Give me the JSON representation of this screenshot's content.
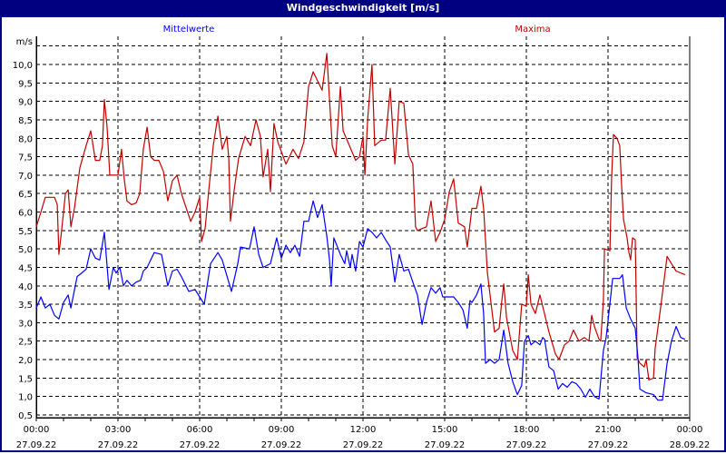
{
  "window": {
    "title": "Windgeschwindigkeit [m/s]"
  },
  "chart_data": {
    "type": "line",
    "title": "Windgeschwindigkeit [m/s]",
    "ylabel": "m/s",
    "xlabel": "",
    "ylim": [
      0.5,
      10.5
    ],
    "xlim_hours": [
      0,
      24
    ],
    "grid": true,
    "y_ticks": [
      "0,5",
      "1,0",
      "1,5",
      "2,0",
      "2,5",
      "3,0",
      "3,5",
      "4,0",
      "4,5",
      "5,0",
      "5,5",
      "6,0",
      "6,5",
      "7,0",
      "7,5",
      "8,0",
      "8,5",
      "9,0",
      "9,5",
      "10,0"
    ],
    "x_ticks": [
      {
        "time": "00:00",
        "date": "27.09.22"
      },
      {
        "time": "03:00",
        "date": "27.09.22"
      },
      {
        "time": "06:00",
        "date": "27.09.22"
      },
      {
        "time": "09:00",
        "date": "27.09.22"
      },
      {
        "time": "12:00",
        "date": "27.09.22"
      },
      {
        "time": "15:00",
        "date": "27.09.22"
      },
      {
        "time": "18:00",
        "date": "27.09.22"
      },
      {
        "time": "21:00",
        "date": "27.09.22"
      },
      {
        "time": "00:00",
        "date": "28.09.22"
      }
    ],
    "series": [
      {
        "name": "Mittelwerte",
        "color": "#0000ff",
        "legend": "top-left",
        "points": [
          [
            0,
            3.4
          ],
          [
            0.17,
            3.7
          ],
          [
            0.33,
            3.4
          ],
          [
            0.5,
            3.5
          ],
          [
            0.67,
            3.2
          ],
          [
            0.83,
            3.1
          ],
          [
            1.0,
            3.55
          ],
          [
            1.17,
            3.75
          ],
          [
            1.27,
            3.4
          ],
          [
            1.5,
            4.25
          ],
          [
            1.67,
            4.35
          ],
          [
            1.83,
            4.45
          ],
          [
            2.0,
            5.0
          ],
          [
            2.17,
            4.75
          ],
          [
            2.33,
            4.7
          ],
          [
            2.5,
            5.45
          ],
          [
            2.67,
            3.9
          ],
          [
            2.83,
            4.5
          ],
          [
            2.93,
            4.35
          ],
          [
            3.07,
            4.5
          ],
          [
            3.2,
            4.0
          ],
          [
            3.33,
            4.15
          ],
          [
            3.5,
            4.0
          ],
          [
            3.67,
            4.1
          ],
          [
            3.83,
            4.15
          ],
          [
            3.93,
            4.4
          ],
          [
            4.07,
            4.5
          ],
          [
            4.33,
            4.9
          ],
          [
            4.6,
            4.85
          ],
          [
            4.83,
            4.0
          ],
          [
            5.0,
            4.4
          ],
          [
            5.17,
            4.45
          ],
          [
            5.33,
            4.25
          ],
          [
            5.6,
            3.85
          ],
          [
            5.83,
            3.9
          ],
          [
            6.0,
            3.7
          ],
          [
            6.17,
            3.5
          ],
          [
            6.4,
            4.6
          ],
          [
            6.67,
            4.9
          ],
          [
            6.83,
            4.7
          ],
          [
            7.17,
            3.85
          ],
          [
            7.4,
            4.6
          ],
          [
            7.5,
            5.05
          ],
          [
            7.83,
            5.0
          ],
          [
            8.0,
            5.6
          ],
          [
            8.17,
            4.85
          ],
          [
            8.33,
            4.5
          ],
          [
            8.6,
            4.6
          ],
          [
            8.83,
            5.3
          ],
          [
            9.0,
            4.75
          ],
          [
            9.17,
            5.1
          ],
          [
            9.33,
            4.9
          ],
          [
            9.5,
            5.1
          ],
          [
            9.67,
            4.8
          ],
          [
            9.83,
            5.75
          ],
          [
            10.0,
            5.75
          ],
          [
            10.17,
            6.3
          ],
          [
            10.33,
            5.85
          ],
          [
            10.5,
            6.2
          ],
          [
            10.67,
            5.35
          ],
          [
            10.77,
            4.7
          ],
          [
            10.83,
            4.0
          ],
          [
            10.93,
            5.3
          ],
          [
            11.17,
            4.85
          ],
          [
            11.33,
            4.6
          ],
          [
            11.4,
            4.95
          ],
          [
            11.53,
            4.5
          ],
          [
            11.6,
            4.85
          ],
          [
            11.73,
            4.4
          ],
          [
            11.87,
            5.2
          ],
          [
            12.0,
            5.05
          ],
          [
            12.17,
            5.55
          ],
          [
            12.33,
            5.45
          ],
          [
            12.5,
            5.3
          ],
          [
            12.67,
            5.45
          ],
          [
            12.83,
            5.25
          ],
          [
            13.0,
            5.05
          ],
          [
            13.17,
            4.1
          ],
          [
            13.33,
            4.85
          ],
          [
            13.5,
            4.4
          ],
          [
            13.67,
            4.45
          ],
          [
            13.83,
            4.1
          ],
          [
            14.0,
            3.75
          ],
          [
            14.17,
            2.95
          ],
          [
            14.33,
            3.55
          ],
          [
            14.5,
            3.95
          ],
          [
            14.67,
            3.8
          ],
          [
            14.83,
            3.95
          ],
          [
            14.93,
            3.7
          ],
          [
            15.33,
            3.7
          ],
          [
            15.5,
            3.55
          ],
          [
            15.67,
            3.35
          ],
          [
            15.83,
            2.85
          ],
          [
            15.93,
            3.6
          ],
          [
            16.0,
            3.55
          ],
          [
            16.17,
            3.75
          ],
          [
            16.33,
            4.05
          ],
          [
            16.43,
            3.25
          ],
          [
            16.5,
            1.9
          ],
          [
            16.67,
            2.0
          ],
          [
            16.83,
            1.9
          ],
          [
            17.0,
            2.0
          ],
          [
            17.17,
            2.8
          ],
          [
            17.33,
            1.9
          ],
          [
            17.5,
            1.4
          ],
          [
            17.67,
            1.05
          ],
          [
            17.83,
            1.3
          ],
          [
            17.93,
            2.5
          ],
          [
            18.07,
            2.65
          ],
          [
            18.17,
            2.4
          ],
          [
            18.33,
            2.5
          ],
          [
            18.5,
            2.4
          ],
          [
            18.6,
            2.6
          ],
          [
            18.67,
            2.55
          ],
          [
            18.83,
            1.8
          ],
          [
            19.0,
            1.7
          ],
          [
            19.17,
            1.2
          ],
          [
            19.33,
            1.35
          ],
          [
            19.5,
            1.25
          ],
          [
            19.67,
            1.4
          ],
          [
            19.83,
            1.35
          ],
          [
            20.0,
            1.2
          ],
          [
            20.17,
            0.98
          ],
          [
            20.33,
            1.2
          ],
          [
            20.5,
            1.0
          ],
          [
            20.67,
            0.93
          ],
          [
            20.83,
            2.25
          ],
          [
            20.93,
            2.6
          ],
          [
            21.0,
            3.05
          ],
          [
            21.17,
            4.2
          ],
          [
            21.43,
            4.2
          ],
          [
            21.53,
            4.3
          ],
          [
            21.67,
            3.4
          ],
          [
            21.83,
            3.1
          ],
          [
            22.0,
            2.85
          ],
          [
            22.1,
            2.05
          ],
          [
            22.17,
            1.2
          ],
          [
            22.4,
            1.1
          ],
          [
            22.67,
            1.05
          ],
          [
            22.83,
            0.9
          ],
          [
            23.0,
            0.9
          ],
          [
            23.17,
            1.9
          ],
          [
            23.33,
            2.5
          ],
          [
            23.5,
            2.9
          ],
          [
            23.67,
            2.6
          ],
          [
            23.83,
            2.55
          ]
        ]
      },
      {
        "name": "Maxima",
        "color": "#c00000",
        "legend": "top-right",
        "points": [
          [
            0,
            5.6
          ],
          [
            0.17,
            6.0
          ],
          [
            0.33,
            6.4
          ],
          [
            0.67,
            6.4
          ],
          [
            0.77,
            6.2
          ],
          [
            0.83,
            4.85
          ],
          [
            0.93,
            5.5
          ],
          [
            1.07,
            6.5
          ],
          [
            1.17,
            6.6
          ],
          [
            1.27,
            5.6
          ],
          [
            1.4,
            6.1
          ],
          [
            1.6,
            7.2
          ],
          [
            1.83,
            7.8
          ],
          [
            2.0,
            8.2
          ],
          [
            2.17,
            7.4
          ],
          [
            2.33,
            7.4
          ],
          [
            2.43,
            7.8
          ],
          [
            2.5,
            9.05
          ],
          [
            2.6,
            8.3
          ],
          [
            2.7,
            7.0
          ],
          [
            3.0,
            7.0
          ],
          [
            3.13,
            7.7
          ],
          [
            3.23,
            6.9
          ],
          [
            3.33,
            6.3
          ],
          [
            3.5,
            6.2
          ],
          [
            3.67,
            6.25
          ],
          [
            3.8,
            6.5
          ],
          [
            3.93,
            7.7
          ],
          [
            4.07,
            8.3
          ],
          [
            4.2,
            7.5
          ],
          [
            4.33,
            7.4
          ],
          [
            4.5,
            7.4
          ],
          [
            4.67,
            7.1
          ],
          [
            4.83,
            6.3
          ],
          [
            5.0,
            6.85
          ],
          [
            5.17,
            7.0
          ],
          [
            5.33,
            6.5
          ],
          [
            5.67,
            5.75
          ],
          [
            5.83,
            6.0
          ],
          [
            6.0,
            6.4
          ],
          [
            6.07,
            5.2
          ],
          [
            6.2,
            5.55
          ],
          [
            6.33,
            6.55
          ],
          [
            6.5,
            7.8
          ],
          [
            6.67,
            8.6
          ],
          [
            6.83,
            7.7
          ],
          [
            7.0,
            8.05
          ],
          [
            7.07,
            7.45
          ],
          [
            7.13,
            5.75
          ],
          [
            7.27,
            6.6
          ],
          [
            7.43,
            7.45
          ],
          [
            7.67,
            8.05
          ],
          [
            7.87,
            7.8
          ],
          [
            8.07,
            8.5
          ],
          [
            8.23,
            8.05
          ],
          [
            8.33,
            6.95
          ],
          [
            8.5,
            7.7
          ],
          [
            8.6,
            6.55
          ],
          [
            8.73,
            8.4
          ],
          [
            8.87,
            7.9
          ],
          [
            9.17,
            7.3
          ],
          [
            9.43,
            7.7
          ],
          [
            9.63,
            7.45
          ],
          [
            9.83,
            7.9
          ],
          [
            10.0,
            9.4
          ],
          [
            10.17,
            9.8
          ],
          [
            10.4,
            9.45
          ],
          [
            10.5,
            9.3
          ],
          [
            10.67,
            10.3
          ],
          [
            10.77,
            9.05
          ],
          [
            10.87,
            7.8
          ],
          [
            11.0,
            7.5
          ],
          [
            11.17,
            9.4
          ],
          [
            11.27,
            8.2
          ],
          [
            11.5,
            7.8
          ],
          [
            11.73,
            7.4
          ],
          [
            11.87,
            7.5
          ],
          [
            12.0,
            8.05
          ],
          [
            12.07,
            7.0
          ],
          [
            12.17,
            8.5
          ],
          [
            12.33,
            10.0
          ],
          [
            12.43,
            7.8
          ],
          [
            12.67,
            7.95
          ],
          [
            12.83,
            7.95
          ],
          [
            13.0,
            9.35
          ],
          [
            13.17,
            7.3
          ],
          [
            13.33,
            9.0
          ],
          [
            13.5,
            8.95
          ],
          [
            13.67,
            7.55
          ],
          [
            13.83,
            7.3
          ],
          [
            13.93,
            5.6
          ],
          [
            14.0,
            5.5
          ],
          [
            14.33,
            5.6
          ],
          [
            14.5,
            6.3
          ],
          [
            14.67,
            5.2
          ],
          [
            14.83,
            5.45
          ],
          [
            15.0,
            5.8
          ],
          [
            15.17,
            6.55
          ],
          [
            15.33,
            6.9
          ],
          [
            15.5,
            5.7
          ],
          [
            15.73,
            5.6
          ],
          [
            15.83,
            5.05
          ],
          [
            16.0,
            6.1
          ],
          [
            16.17,
            6.1
          ],
          [
            16.33,
            6.7
          ],
          [
            16.43,
            6.1
          ],
          [
            16.57,
            4.35
          ],
          [
            16.83,
            2.75
          ],
          [
            17.0,
            2.85
          ],
          [
            17.1,
            3.6
          ],
          [
            17.17,
            4.05
          ],
          [
            17.27,
            3.15
          ],
          [
            17.5,
            2.25
          ],
          [
            17.67,
            2.0
          ],
          [
            17.83,
            3.5
          ],
          [
            18.0,
            3.45
          ],
          [
            18.07,
            4.3
          ],
          [
            18.17,
            3.5
          ],
          [
            18.33,
            3.25
          ],
          [
            18.5,
            3.75
          ],
          [
            18.83,
            2.75
          ],
          [
            19.07,
            2.15
          ],
          [
            19.2,
            2.0
          ],
          [
            19.4,
            2.4
          ],
          [
            19.57,
            2.5
          ],
          [
            19.73,
            2.8
          ],
          [
            19.93,
            2.5
          ],
          [
            20.13,
            2.6
          ],
          [
            20.3,
            2.5
          ],
          [
            20.4,
            3.2
          ],
          [
            20.5,
            2.9
          ],
          [
            20.67,
            2.55
          ],
          [
            20.73,
            2.5
          ],
          [
            20.83,
            3.6
          ],
          [
            20.87,
            5.0
          ],
          [
            21.07,
            4.95
          ],
          [
            21.13,
            6.9
          ],
          [
            21.2,
            8.1
          ],
          [
            21.33,
            8.0
          ],
          [
            21.43,
            7.8
          ],
          [
            21.5,
            6.7
          ],
          [
            21.57,
            5.8
          ],
          [
            21.7,
            5.3
          ],
          [
            21.77,
            4.9
          ],
          [
            21.83,
            4.7
          ],
          [
            21.9,
            5.3
          ],
          [
            22.0,
            5.25
          ],
          [
            22.07,
            2.05
          ],
          [
            22.17,
            1.9
          ],
          [
            22.33,
            1.8
          ],
          [
            22.4,
            2.0
          ],
          [
            22.5,
            1.45
          ],
          [
            22.67,
            1.5
          ],
          [
            22.73,
            2.3
          ],
          [
            22.93,
            3.4
          ],
          [
            23.17,
            4.8
          ],
          [
            23.33,
            4.6
          ],
          [
            23.5,
            4.4
          ],
          [
            23.83,
            4.3
          ]
        ]
      }
    ]
  }
}
